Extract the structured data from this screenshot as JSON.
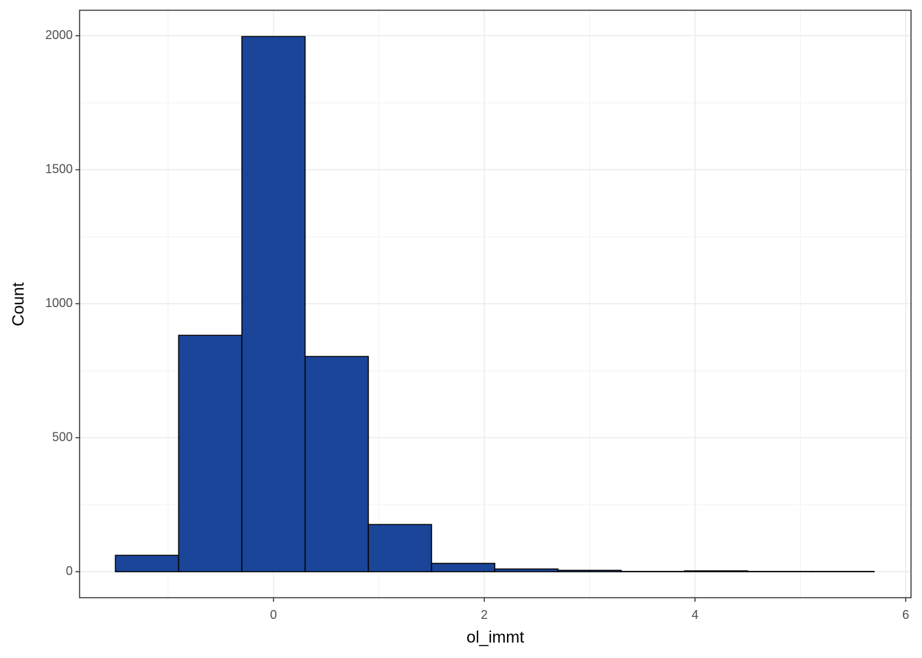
{
  "chart_data": {
    "type": "histogram",
    "x_label": "ol_immt",
    "y_label": "Count",
    "bins": [
      -1.5,
      -0.9,
      -0.3,
      0.3,
      0.9,
      1.5,
      2.1,
      2.7,
      3.3,
      3.9,
      4.5,
      5.1,
      5.7
    ],
    "values": [
      61,
      882,
      1997,
      803,
      176,
      31,
      10,
      5,
      1,
      3,
      1,
      1
    ],
    "color": "#1a4599",
    "edgecolor": "#000000",
    "xlim": [
      -1.84,
      6.05
    ],
    "xticks": [
      0,
      2,
      4,
      6
    ],
    "ylim": [
      -97,
      2095
    ],
    "yticks": [
      0,
      500,
      1000,
      1500,
      2000
    ],
    "grid": true
  }
}
